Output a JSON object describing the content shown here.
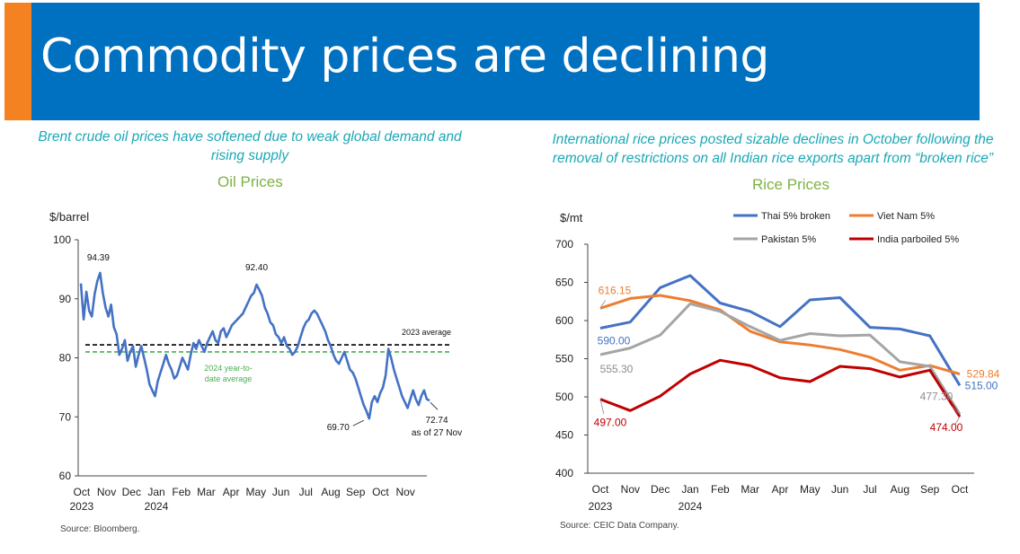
{
  "header": {
    "title": "Commodity prices are declining",
    "colors": {
      "banner": "#0070c0",
      "accent": "#f58220"
    }
  },
  "left_panel": {
    "subtitle": "Brent crude oil prices have softened due to weak global demand and rising supply",
    "source": "Source: Bloomberg."
  },
  "right_panel": {
    "subtitle": "International rice prices posted sizable declines in October following the removal of restrictions on all Indian rice exports apart from “broken rice”",
    "source": "Source: CEIC Data Company."
  },
  "chart_data": [
    {
      "type": "line",
      "title": "Oil Prices",
      "ylabel": "$/barrel",
      "ylim": [
        60,
        100
      ],
      "yticks": [
        "60",
        "70",
        "80",
        "90",
        "100"
      ],
      "xticks": [
        {
          "month": "Oct",
          "year": "2023"
        },
        {
          "month": "Nov",
          "year": ""
        },
        {
          "month": "Dec",
          "year": ""
        },
        {
          "month": "Jan",
          "year": "2024"
        },
        {
          "month": "Feb",
          "year": ""
        },
        {
          "month": "Mar",
          "year": ""
        },
        {
          "month": "Apr",
          "year": ""
        },
        {
          "month": "May",
          "year": ""
        },
        {
          "month": "Jun",
          "year": ""
        },
        {
          "month": "Jul",
          "year": ""
        },
        {
          "month": "Aug",
          "year": ""
        },
        {
          "month": "Sep",
          "year": ""
        },
        {
          "month": "Oct",
          "year": ""
        },
        {
          "month": "Nov",
          "year": ""
        }
      ],
      "series": [
        {
          "color": "#4472c4",
          "values": [
            92.6,
            86.5,
            91.2,
            88.0,
            87.0,
            90.8,
            93.0,
            94.39,
            91.0,
            88.5,
            87.0,
            89.0,
            85.2,
            84.0,
            80.5,
            81.5,
            83.0,
            79.5,
            81.0,
            82.0,
            78.5,
            80.5,
            82.0,
            80.0,
            78.0,
            75.5,
            74.5,
            73.5,
            76.0,
            77.5,
            79.0,
            80.5,
            79.0,
            78.0,
            76.5,
            77.0,
            78.5,
            80.0,
            79.0,
            78.0,
            80.5,
            82.5,
            81.5,
            83.0,
            82.0,
            81.0,
            82.5,
            83.5,
            84.5,
            83.0,
            82.5,
            84.5,
            85.0,
            83.5,
            84.5,
            85.5,
            86.0,
            86.5,
            87.0,
            87.5,
            88.5,
            89.5,
            90.5,
            91.0,
            92.4,
            91.5,
            90.5,
            88.5,
            87.5,
            86.0,
            85.5,
            84.0,
            83.5,
            82.5,
            83.5,
            82.0,
            81.5,
            80.5,
            81.0,
            82.0,
            83.5,
            85.0,
            86.0,
            86.5,
            87.5,
            88.0,
            87.5,
            86.5,
            85.5,
            84.5,
            83.0,
            82.0,
            80.5,
            79.5,
            79.0,
            80.0,
            81.0,
            79.5,
            78.0,
            77.5,
            76.5,
            75.0,
            73.5,
            72.0,
            71.0,
            69.7,
            72.5,
            73.5,
            72.5,
            74.0,
            75.0,
            77.0,
            81.5,
            80.0,
            78.0,
            76.5,
            75.0,
            73.5,
            72.5,
            71.5,
            73.0,
            74.5,
            73.0,
            72.0,
            73.5,
            74.5,
            73.0,
            72.74
          ]
        }
      ],
      "reference_lines": [
        {
          "name": "2023 average",
          "value": 82.2,
          "color": "#000000"
        },
        {
          "name": "2024 year-to-date average",
          "value": 81.0,
          "color": "#4caf50"
        }
      ],
      "annotations": [
        {
          "label": "94.39",
          "value": 94.39
        },
        {
          "label": "92.40",
          "value": 92.4
        },
        {
          "label": "69.70",
          "value": 69.7
        },
        {
          "label": "72.74",
          "value": 72.74,
          "note": "as of 27 Nov"
        }
      ],
      "ref_labels": {
        "avg2023": "2023 average",
        "avg2024_line1": "2024 year-to-",
        "avg2024_line2": "date average"
      },
      "grid": false
    },
    {
      "type": "line",
      "title": "Rice Prices",
      "ylabel": "$/mt",
      "ylim": [
        400,
        700
      ],
      "yticks": [
        "400",
        "450",
        "500",
        "550",
        "600",
        "650",
        "700"
      ],
      "categories": [
        "Oct",
        "Nov",
        "Dec",
        "Jan",
        "Feb",
        "Mar",
        "Apr",
        "May",
        "Jun",
        "Jul",
        "Aug",
        "Sep",
        "Oct"
      ],
      "year_labels": [
        {
          "index": 0,
          "label": "2023"
        },
        {
          "index": 3,
          "label": "2024"
        }
      ],
      "legend": "top",
      "series": [
        {
          "name": "Thai 5% broken",
          "color": "#4472c4",
          "values": [
            590.0,
            598,
            643,
            659,
            623,
            612,
            592,
            627,
            630,
            591,
            589,
            580,
            515.0
          ]
        },
        {
          "name": "Viet Nam 5%",
          "color": "#ed7d31",
          "values": [
            616.15,
            629,
            633,
            626,
            614,
            586,
            572,
            568,
            562,
            552,
            535,
            541,
            529.84
          ]
        },
        {
          "name": "Pakistan 5%",
          "color": "#a5a5a5",
          "values": [
            555.3,
            564,
            581,
            622,
            612,
            592,
            574,
            583,
            580,
            581,
            546,
            540,
            477.3
          ]
        },
        {
          "name": "India parboiled 5%",
          "color": "#c00000",
          "values": [
            497.0,
            482,
            501,
            530,
            548,
            541,
            525,
            520,
            540,
            537,
            526,
            535,
            474.0
          ]
        }
      ],
      "data_labels": [
        {
          "series": "Viet Nam 5%",
          "index": 0,
          "label": "616.15"
        },
        {
          "series": "Thai 5% broken",
          "index": 0,
          "label": "590.00"
        },
        {
          "series": "Pakistan 5%",
          "index": 0,
          "label": "555.30"
        },
        {
          "series": "India parboiled 5%",
          "index": 0,
          "label": "497.00"
        },
        {
          "series": "Viet Nam 5%",
          "index": 12,
          "label": "529.84"
        },
        {
          "series": "Thai 5% broken",
          "index": 12,
          "label": "515.00"
        },
        {
          "series": "Pakistan 5%",
          "index": 12,
          "label": "477.30"
        },
        {
          "series": "India parboiled 5%",
          "index": 12,
          "label": "474.00"
        }
      ],
      "grid": false
    }
  ]
}
